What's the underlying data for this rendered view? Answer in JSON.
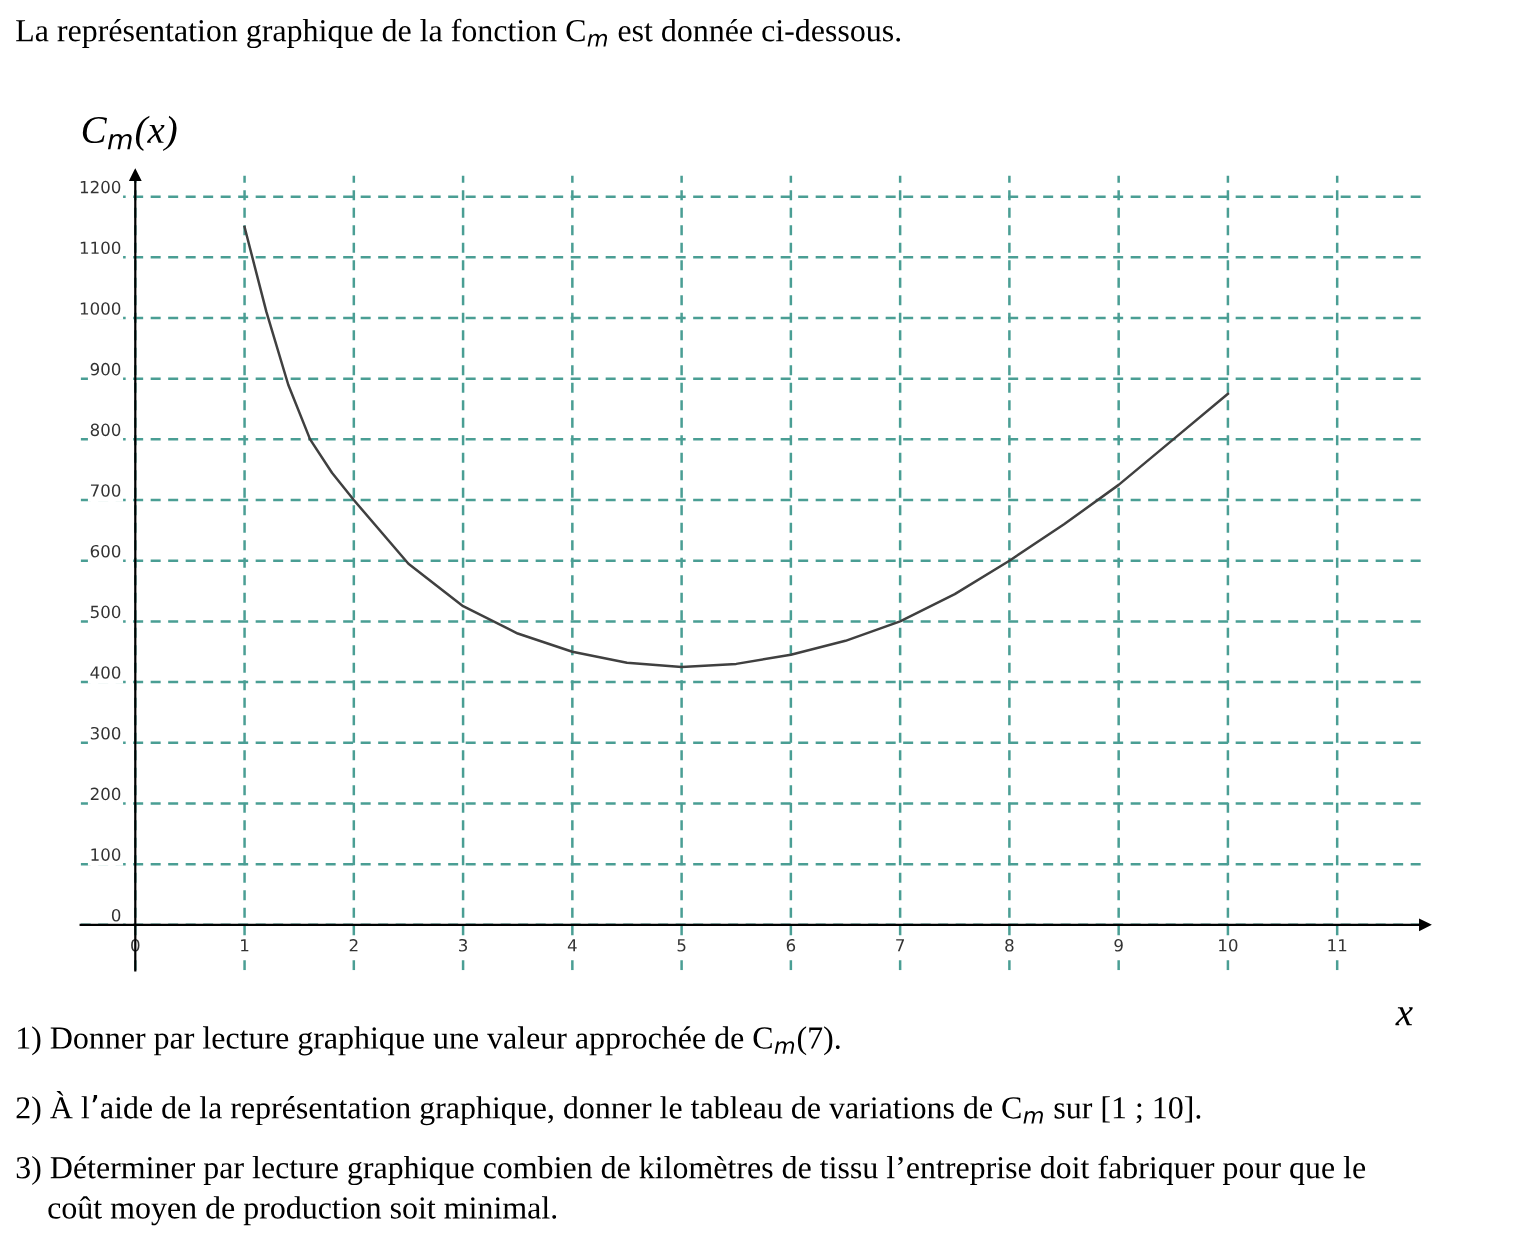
{
  "chart_data": {
    "type": "line",
    "title": "La représentation graphique de la fonction C$_{m}$ est donnée ci-dessous.",
    "ylabel": "C$_{m}$(x)",
    "xlabel": "x",
    "x": [
      1,
      1.2,
      1.4,
      1.6,
      1.8,
      2,
      2.5,
      3,
      3.5,
      4,
      4.5,
      5,
      5.5,
      6,
      6.5,
      7,
      7.5,
      8,
      8.5,
      9,
      9.5,
      10
    ],
    "series": [
      {
        "color": "#404040",
        "values": [
          1150,
          1010,
          890,
          800,
          745,
          700,
          595,
          525,
          480,
          450,
          432,
          425,
          430,
          445,
          468,
          500,
          545,
          600,
          660,
          725,
          800,
          875
        ]
      }
    ],
    "xlim": [
      -0.5,
      11.8
    ],
    "ylim": [
      -75,
      1235
    ],
    "xticks": [
      0,
      1,
      2,
      3,
      4,
      5,
      6,
      7,
      8,
      9,
      10,
      11
    ],
    "yticks": [
      0,
      100,
      200,
      300,
      400,
      500,
      600,
      700,
      800,
      900,
      1000,
      1100,
      1200
    ],
    "grid": true,
    "marker": "none",
    "line_style": "solid",
    "annotations": [
      "1) Donner par lecture graphique une valeur approchée de C$_{m}$(7).",
      "2) À l’aide de la représentation graphique, donner le tableau de variations de C$_{m}$ sur [1 ; 10].",
      "3) Déterminer par lecture graphique combien de kilomètres de tissu l’entreprise doit fabriquer pour que le\n    coût moyen de production soit minimal."
    ]
  }
}
